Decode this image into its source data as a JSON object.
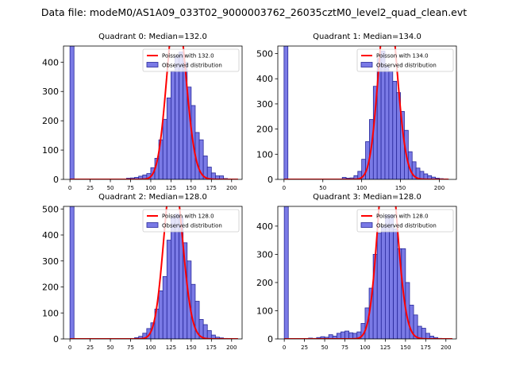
{
  "figure_title": "Data file: modeM0/AS1A09_033T02_9000003762_26035cztM0_level2_quad_clean.evt",
  "chart_data": [
    {
      "type": "bar",
      "title": "Quadrant 0: Median=132.0",
      "legend": [
        "Poisson with 132.0",
        "Observed distribution"
      ],
      "legend_position": "upper right",
      "xlim": [
        -8,
        213
      ],
      "ylim": [
        0,
        455
      ],
      "xticks": [
        0,
        25,
        50,
        75,
        100,
        125,
        150,
        175,
        200
      ],
      "yticks": [
        0,
        100,
        200,
        300,
        400
      ],
      "poisson_mean": 132,
      "bin_width": 5,
      "spike": {
        "x": 0,
        "value": 455
      },
      "bin_left": [
        70,
        75,
        80,
        85,
        90,
        95,
        100,
        105,
        110,
        115,
        120,
        125,
        130,
        135,
        140,
        145,
        150,
        155,
        160,
        165,
        170,
        175,
        180,
        185,
        190,
        195
      ],
      "values": [
        4,
        5,
        7,
        11,
        15,
        20,
        40,
        72,
        135,
        205,
        278,
        370,
        422,
        435,
        400,
        315,
        252,
        160,
        135,
        80,
        42,
        22,
        12,
        12,
        3,
        1
      ]
    },
    {
      "type": "bar",
      "title": "Quadrant 1: Median=134.0",
      "legend": [
        "Poisson with 134.0",
        "Observed distribution"
      ],
      "legend_position": "upper right",
      "xlim": [
        -8,
        222
      ],
      "ylim": [
        0,
        530
      ],
      "xticks": [
        0,
        50,
        100,
        150,
        200
      ],
      "yticks": [
        0,
        100,
        200,
        300,
        400,
        500
      ],
      "poisson_mean": 134,
      "bin_width": 5,
      "spike": {
        "x": 0,
        "value": 530
      },
      "bin_left": [
        75,
        80,
        85,
        90,
        95,
        100,
        105,
        110,
        115,
        120,
        125,
        130,
        135,
        140,
        145,
        150,
        155,
        160,
        165,
        170,
        175,
        180,
        185,
        190,
        195,
        200,
        205
      ],
      "values": [
        8,
        5,
        6,
        15,
        32,
        80,
        150,
        238,
        370,
        480,
        510,
        450,
        430,
        390,
        345,
        270,
        195,
        110,
        70,
        45,
        32,
        22,
        15,
        9,
        5,
        3,
        2
      ]
    },
    {
      "type": "bar",
      "title": "Quadrant 2: Median=128.0",
      "legend": [
        "Poisson with 128.0",
        "Observed distribution"
      ],
      "legend_position": "upper right",
      "xlim": [
        -8,
        213
      ],
      "ylim": [
        0,
        510
      ],
      "xticks": [
        0,
        25,
        50,
        75,
        100,
        125,
        150,
        175,
        200
      ],
      "yticks": [
        0,
        100,
        200,
        300,
        400,
        500
      ],
      "poisson_mean": 128,
      "bin_width": 5,
      "spike": {
        "x": 0,
        "value": 510
      },
      "bin_left": [
        75,
        80,
        85,
        90,
        95,
        100,
        105,
        110,
        115,
        120,
        125,
        130,
        135,
        140,
        145,
        150,
        155,
        160,
        165,
        170,
        175,
        180,
        185,
        190,
        195
      ],
      "values": [
        2,
        5,
        10,
        22,
        40,
        62,
        115,
        185,
        240,
        380,
        470,
        480,
        470,
        370,
        300,
        210,
        145,
        75,
        55,
        32,
        15,
        7,
        4,
        2,
        1
      ]
    },
    {
      "type": "bar",
      "title": "Quadrant 3: Median=128.0",
      "legend": [
        "Poisson with 128.0",
        "Observed distribution"
      ],
      "legend_position": "upper right",
      "xlim": [
        -8,
        213
      ],
      "ylim": [
        0,
        470
      ],
      "xticks": [
        0,
        25,
        50,
        75,
        100,
        125,
        150,
        175,
        200
      ],
      "yticks": [
        0,
        100,
        200,
        300,
        400
      ],
      "poisson_mean": 128,
      "bin_width": 5,
      "spike": {
        "x": 0,
        "value": 470
      },
      "bin_left": [
        30,
        35,
        40,
        45,
        50,
        55,
        60,
        65,
        70,
        75,
        80,
        85,
        90,
        95,
        100,
        105,
        110,
        115,
        120,
        125,
        130,
        135,
        140,
        145,
        150,
        155,
        160,
        165,
        170,
        175,
        180,
        185,
        190,
        195
      ],
      "values": [
        3,
        2,
        5,
        8,
        6,
        15,
        10,
        20,
        25,
        28,
        22,
        20,
        25,
        55,
        110,
        180,
        300,
        375,
        400,
        440,
        440,
        390,
        320,
        320,
        200,
        120,
        85,
        45,
        38,
        20,
        10,
        5,
        2,
        1
      ]
    }
  ],
  "colors": {
    "bar_fill": "#7a7ae6",
    "bar_edge": "#28289a",
    "poisson_line": "#ff0000"
  }
}
